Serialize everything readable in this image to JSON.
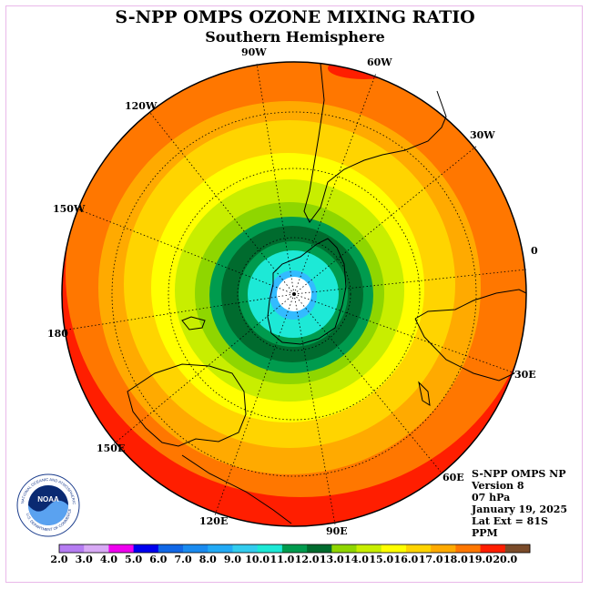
{
  "header": {
    "title": "S-NPP OMPS OZONE MIXING RATIO",
    "subtitle": "Southern Hemisphere"
  },
  "map": {
    "projection": "south-polar-stereographic",
    "longitude_labels": [
      "0",
      "30W",
      "60W",
      "90W",
      "120W",
      "150W",
      "180",
      "150E",
      "120E",
      "90E",
      "60E",
      "30E"
    ],
    "contour_colors": {
      "c10": "#1de9d6",
      "c11": "#009b4e",
      "c12": "#006b2e",
      "c13": "#8fd600",
      "c14": "#c8ee00",
      "c15": "#ffff00",
      "c16": "#ffd400",
      "c17": "#ffaa00",
      "c18": "#ff7700",
      "c19": "#ff1e00",
      "c20": "#7a4b2a",
      "c9": "#33bbff"
    }
  },
  "info": {
    "instrument": "S-NPP OMPS NP",
    "version": "Version 8",
    "level": "07 hPa",
    "date": "January 19, 2025",
    "lat_ext": "Lat Ext = 81S",
    "units": "PPM"
  },
  "colorbar": {
    "ticks": [
      "2.0",
      "3.0",
      "4.0",
      "5.0",
      "6.0",
      "7.0",
      "8.0",
      "9.0",
      "10.0",
      "11.0",
      "12.0",
      "13.0",
      "14.0",
      "15.0",
      "16.0",
      "17.0",
      "18.0",
      "19.0",
      "20.0"
    ],
    "colors": [
      "#b57cf2",
      "#d8a9f5",
      "#ee00ee",
      "#0000ee",
      "#1167e6",
      "#1a8bf0",
      "#22aaf5",
      "#33ccee",
      "#1de9d6",
      "#009b4e",
      "#006b2e",
      "#8fd600",
      "#c8ee00",
      "#ffff00",
      "#ffd400",
      "#ffaa00",
      "#ff7700",
      "#ff1e00",
      "#7a4b2a"
    ]
  },
  "logo": {
    "text": "NOAA",
    "ring_text": "NATIONAL OCEANIC AND ATMOSPHERIC ADMINISTRATION",
    "ring_text_bottom": "U.S. DEPARTMENT OF COMMERCE"
  }
}
